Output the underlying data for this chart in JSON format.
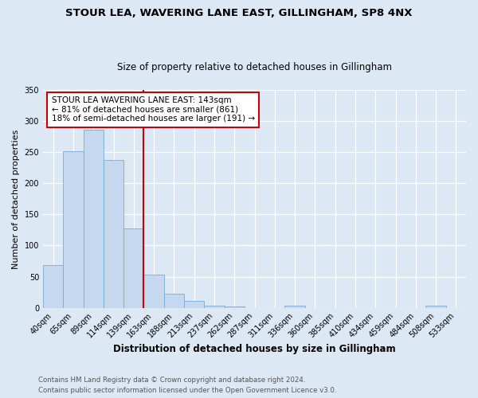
{
  "title": "STOUR LEA, WAVERING LANE EAST, GILLINGHAM, SP8 4NX",
  "subtitle": "Size of property relative to detached houses in Gillingham",
  "xlabel": "Distribution of detached houses by size in Gillingham",
  "ylabel": "Number of detached properties",
  "categories": [
    "40sqm",
    "65sqm",
    "89sqm",
    "114sqm",
    "139sqm",
    "163sqm",
    "188sqm",
    "213sqm",
    "237sqm",
    "262sqm",
    "287sqm",
    "311sqm",
    "336sqm",
    "360sqm",
    "385sqm",
    "410sqm",
    "434sqm",
    "459sqm",
    "484sqm",
    "508sqm",
    "533sqm"
  ],
  "values": [
    68,
    251,
    286,
    237,
    127,
    53,
    22,
    11,
    4,
    2,
    0,
    0,
    3,
    0,
    0,
    0,
    0,
    0,
    0,
    3,
    0
  ],
  "bar_color": "#c5d8f0",
  "bar_edge_color": "#7aaad4",
  "background_color": "#dde8f5",
  "grid_color": "#ffffff",
  "marker_label": "STOUR LEA WAVERING LANE EAST: 143sqm",
  "marker_line1": "← 81% of detached houses are smaller (861)",
  "marker_line2": "18% of semi-detached houses are larger (191) →",
  "annotation_box_color": "#ffffff",
  "annotation_border_color": "#cc0000",
  "marker_line_color": "#cc0000",
  "ylim": [
    0,
    350
  ],
  "yticks": [
    0,
    50,
    100,
    150,
    200,
    250,
    300,
    350
  ],
  "footer1": "Contains HM Land Registry data © Crown copyright and database right 2024.",
  "footer2": "Contains public sector information licensed under the Open Government Licence v3.0."
}
